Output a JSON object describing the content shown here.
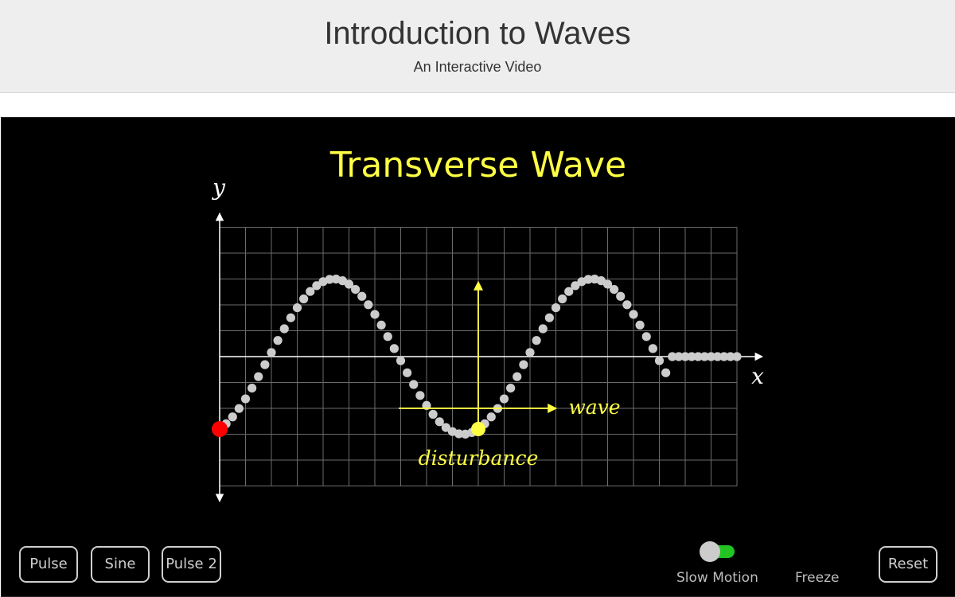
{
  "header": {
    "title": "Introduction to Waves",
    "subtitle": "An Interactive Video"
  },
  "stage": {
    "title": "Transverse Wave",
    "axis_y_label": "y",
    "axis_x_label": "x",
    "wave_label": "wave",
    "disturbance_label": "disturbance",
    "colors": {
      "background": "#000000",
      "grid": "#6b6b6b",
      "axis": "#ffffff",
      "particle": "#cccccc",
      "source_particle": "#ff0000",
      "highlight": "#ffff44",
      "title": "#ffff44"
    }
  },
  "wave": {
    "amplitude": 3,
    "wavelength": 10,
    "front_x": 17.25,
    "source_phase_y": -2.8,
    "tracked_particle_x": 10
  },
  "buttons": {
    "pulse": "Pulse",
    "sine": "Sine",
    "pulse2": "Pulse 2",
    "reset": "Reset"
  },
  "controls": {
    "slow_motion_label": "Slow Motion",
    "freeze_label": "Freeze",
    "slow_motion_on": true
  }
}
